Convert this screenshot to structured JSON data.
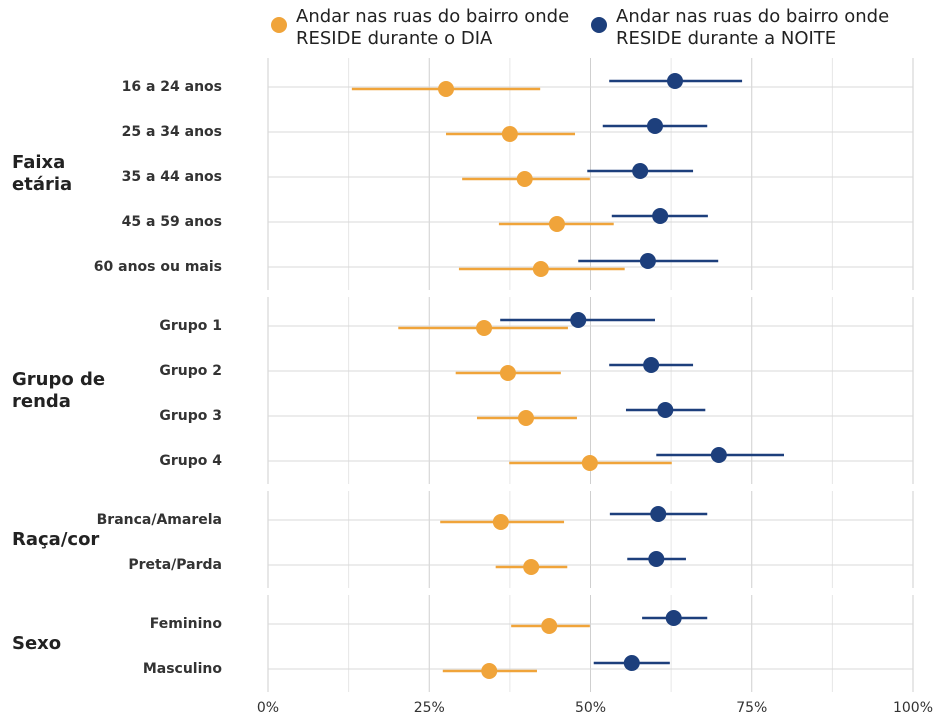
{
  "chart_data": {
    "type": "dot_interval",
    "series": [
      {
        "name": "Andar nas ruas do bairro onde RESIDE durante o DIA",
        "color": "#f0a43a"
      },
      {
        "name": "Andar nas ruas do bairro onde RESIDE durante a NOITE",
        "color": "#1d3f7c"
      }
    ],
    "xlim": [
      0,
      100
    ],
    "xticks": [
      {
        "value": 0,
        "label": "0%"
      },
      {
        "value": 25,
        "label": "25%"
      },
      {
        "value": 50,
        "label": "50%"
      },
      {
        "value": 75,
        "label": "75%"
      },
      {
        "value": 100,
        "label": "100%"
      }
    ],
    "minor_xticks": [
      12.5,
      37.5,
      62.5,
      87.5
    ],
    "grid": true,
    "panels": [
      {
        "label": "Faixa etária",
        "categories": [
          "16 a 24 anos",
          "25 a 34 anos",
          "35 a 44 anos",
          "45 a 59 anos",
          "60 anos ou mais"
        ],
        "series": [
          {
            "values": [
              27.6,
              37.5,
              39.8,
              44.8,
              42.3
            ],
            "lower": [
              13.0,
              27.6,
              30.1,
              35.8,
              29.6
            ],
            "upper": [
              42.2,
              47.6,
              49.9,
              53.6,
              55.3
            ]
          },
          {
            "values": [
              63.1,
              60.0,
              57.7,
              60.8,
              58.9
            ],
            "lower": [
              52.9,
              51.9,
              49.5,
              53.3,
              48.1
            ],
            "upper": [
              73.5,
              68.1,
              65.9,
              68.2,
              69.8
            ]
          }
        ]
      },
      {
        "label": "Grupo de renda",
        "categories": [
          "Grupo 1",
          "Grupo 2",
          "Grupo 3",
          "Grupo 4"
        ],
        "series": [
          {
            "values": [
              33.5,
              37.2,
              40.0,
              49.9
            ],
            "lower": [
              20.2,
              29.1,
              32.4,
              37.4
            ],
            "upper": [
              46.5,
              45.4,
              47.9,
              62.6
            ]
          },
          {
            "values": [
              48.1,
              59.4,
              61.6,
              69.9
            ],
            "lower": [
              36.0,
              52.9,
              55.5,
              60.2
            ],
            "upper": [
              60.0,
              65.9,
              67.8,
              80.0
            ]
          }
        ]
      },
      {
        "label": "Raça/cor",
        "categories": [
          "Branca/Amarela",
          "Preta/Parda"
        ],
        "series": [
          {
            "values": [
              36.1,
              40.8
            ],
            "lower": [
              26.7,
              35.3
            ],
            "upper": [
              45.9,
              46.4
            ]
          },
          {
            "values": [
              60.5,
              60.2
            ],
            "lower": [
              53.0,
              55.7
            ],
            "upper": [
              68.1,
              64.8
            ]
          }
        ]
      },
      {
        "label": "Sexo",
        "categories": [
          "Feminino",
          "Masculino"
        ],
        "series": [
          {
            "values": [
              43.6,
              34.3
            ],
            "lower": [
              37.7,
              27.1
            ],
            "upper": [
              49.9,
              41.7
            ]
          },
          {
            "values": [
              62.9,
              56.4
            ],
            "lower": [
              58.0,
              50.5
            ],
            "upper": [
              68.1,
              62.3
            ]
          }
        ]
      }
    ]
  }
}
